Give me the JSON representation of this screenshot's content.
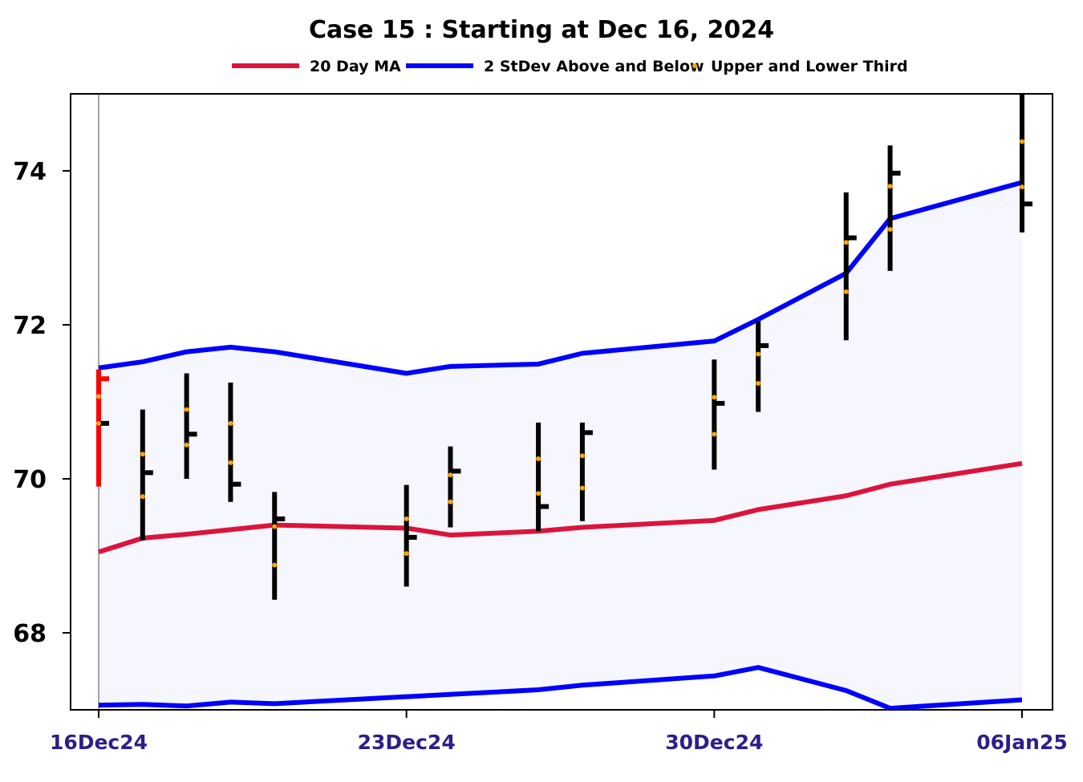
{
  "chart_data": {
    "type": "ohlc",
    "title": "Case 15 :  Starting at Dec 16, 2024",
    "xlabel": "",
    "ylabel": "",
    "ylim": [
      67.0,
      75.0
    ],
    "grid": false,
    "legend_position": "top",
    "legend": [
      {
        "label": "20 Day MA",
        "kind": "line",
        "color": "#dc143c"
      },
      {
        "label": "2 StDev Above and Below",
        "kind": "line",
        "color": "#0000ff"
      },
      {
        "label": "Upper  and Lower Third",
        "kind": "dot",
        "color": "#ffa500"
      }
    ],
    "y_ticks": [
      {
        "value": 68,
        "label": "68"
      },
      {
        "value": 70,
        "label": "70"
      },
      {
        "value": 72,
        "label": "72"
      },
      {
        "value": 74,
        "label": "74"
      }
    ],
    "x_ticks": [
      {
        "date": "2024-12-16",
        "label": "16Dec24"
      },
      {
        "date": "2024-12-23",
        "label": "23Dec24"
      },
      {
        "date": "2024-12-30",
        "label": "30Dec24"
      },
      {
        "date": "2025-01-06",
        "label": "06Jan25"
      }
    ],
    "x_range": [
      "2024-12-16",
      "2025-01-06"
    ],
    "bars": [
      {
        "date": "2024-12-16",
        "high": 71.42,
        "low": 69.9,
        "open": 71.3,
        "close": 70.72,
        "upper_third": 71.07,
        "lower_third": 70.72,
        "color": "#ff0000"
      },
      {
        "date": "2024-12-17",
        "high": 70.9,
        "low": 69.2,
        "close": 70.08,
        "upper_third": 70.32,
        "lower_third": 69.77,
        "color": "#000000"
      },
      {
        "date": "2024-12-18",
        "high": 71.37,
        "low": 70.0,
        "close": 70.58,
        "upper_third": 70.9,
        "lower_third": 70.44,
        "color": "#000000"
      },
      {
        "date": "2024-12-19",
        "high": 71.25,
        "low": 69.7,
        "close": 69.93,
        "upper_third": 70.72,
        "lower_third": 70.21,
        "color": "#000000"
      },
      {
        "date": "2024-12-20",
        "high": 69.83,
        "low": 68.43,
        "close": 69.48,
        "upper_third": 69.38,
        "lower_third": 68.88,
        "color": "#000000"
      },
      {
        "date": "2024-12-23",
        "high": 69.92,
        "low": 68.6,
        "close": 69.24,
        "upper_third": 69.48,
        "lower_third": 69.03,
        "color": "#000000"
      },
      {
        "date": "2024-12-24",
        "high": 70.42,
        "low": 69.37,
        "close": 70.1,
        "upper_third": 70.05,
        "lower_third": 69.7,
        "color": "#000000"
      },
      {
        "date": "2024-12-26",
        "high": 70.73,
        "low": 69.32,
        "close": 69.64,
        "upper_third": 70.26,
        "lower_third": 69.81,
        "color": "#000000"
      },
      {
        "date": "2024-12-27",
        "high": 70.73,
        "low": 69.45,
        "close": 70.6,
        "upper_third": 70.3,
        "lower_third": 69.88,
        "color": "#000000"
      },
      {
        "date": "2024-12-30",
        "high": 71.55,
        "low": 70.12,
        "close": 70.98,
        "upper_third": 71.06,
        "lower_third": 70.58,
        "color": "#000000"
      },
      {
        "date": "2024-12-31",
        "high": 72.05,
        "low": 70.87,
        "close": 71.73,
        "upper_third": 71.62,
        "lower_third": 71.24,
        "color": "#000000"
      },
      {
        "date": "2025-01-02",
        "high": 73.72,
        "low": 71.8,
        "close": 73.13,
        "upper_third": 73.07,
        "lower_third": 72.43,
        "color": "#000000"
      },
      {
        "date": "2025-01-03",
        "high": 74.33,
        "low": 72.7,
        "close": 73.97,
        "upper_third": 73.8,
        "lower_third": 73.24,
        "color": "#000000"
      },
      {
        "date": "2025-01-06",
        "high": 75.0,
        "low": 73.2,
        "close": 73.57,
        "upper_third": 74.38,
        "lower_third": 73.79,
        "color": "#000000"
      }
    ],
    "series": [
      {
        "name": "20 Day MA",
        "color": "#dc143c",
        "values": [
          69.05,
          69.23,
          69.28,
          69.34,
          69.4,
          69.36,
          69.27,
          69.32,
          69.37,
          69.46,
          69.6,
          69.78,
          69.93,
          70.2
        ]
      },
      {
        "name": "2 StDev Above",
        "color": "#0000ff",
        "values": [
          71.44,
          71.52,
          71.65,
          71.71,
          71.65,
          71.37,
          71.46,
          71.49,
          71.63,
          71.79,
          72.07,
          72.67,
          73.38,
          73.85
        ]
      },
      {
        "name": "2 StDev Below",
        "color": "#0000ff",
        "values": [
          67.06,
          67.07,
          67.05,
          67.1,
          67.08,
          67.17,
          67.2,
          67.26,
          67.32,
          67.44,
          67.55,
          67.25,
          67.02,
          67.13
        ]
      }
    ],
    "band_fill_color": "#f6f6fe"
  }
}
